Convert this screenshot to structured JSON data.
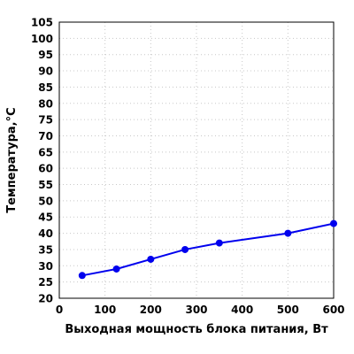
{
  "chart_data": {
    "type": "line",
    "title": "",
    "xlabel": "Выходная мощность блока питания, Вт",
    "ylabel": "Температура,°С",
    "xlim": [
      0,
      600
    ],
    "ylim": [
      20,
      105
    ],
    "xticks": [
      0,
      100,
      200,
      300,
      400,
      500,
      600
    ],
    "yticks": [
      20,
      25,
      30,
      35,
      40,
      45,
      50,
      55,
      60,
      65,
      70,
      75,
      80,
      85,
      90,
      95,
      100,
      105
    ],
    "grid": true,
    "legend": "none",
    "series": [
      {
        "color": "#0000ee",
        "x": [
          50,
          125,
          200,
          275,
          350,
          500,
          600
        ],
        "y": [
          27,
          29,
          32,
          35,
          37,
          40,
          43
        ]
      }
    ]
  }
}
